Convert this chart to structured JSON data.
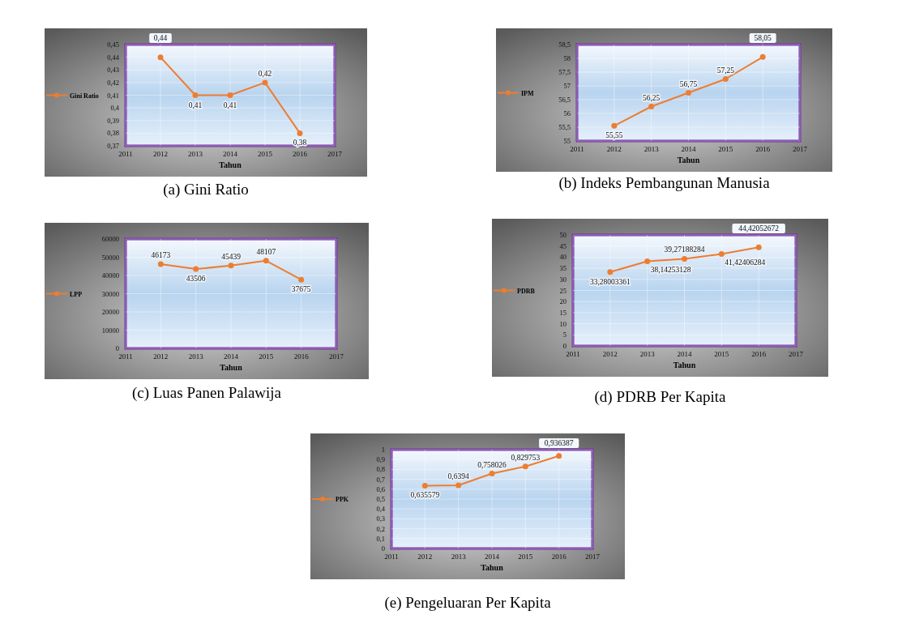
{
  "chart_data": [
    {
      "type": "line",
      "title": "(a)  Gini Ratio",
      "xlabel": "Tahun",
      "x": [
        2012,
        2013,
        2014,
        2015,
        2016
      ],
      "series": [
        {
          "name": "Gini Ratio",
          "color": "#ed7d31",
          "values": [
            0.44,
            0.41,
            0.41,
            0.42,
            0.38
          ],
          "value_labels": [
            "0,44",
            "0,41",
            "0,41",
            "0,42",
            "0,38"
          ]
        }
      ],
      "xlim": [
        2011,
        2017
      ],
      "xticks": [
        2011,
        2012,
        2013,
        2014,
        2015,
        2016,
        2017
      ],
      "ylim": [
        0.37,
        0.45
      ],
      "yticks": [
        {
          "value": 0.37,
          "label": "0,37"
        },
        {
          "value": 0.38,
          "label": "0,38"
        },
        {
          "value": 0.39,
          "label": "0,39"
        },
        {
          "value": 0.4,
          "label": "0,4"
        },
        {
          "value": 0.41,
          "label": "0,41"
        },
        {
          "value": 0.42,
          "label": "0,42"
        },
        {
          "value": 0.43,
          "label": "0,43"
        },
        {
          "value": 0.44,
          "label": "0,44"
        },
        {
          "value": 0.45,
          "label": "0,45"
        }
      ],
      "grid": true,
      "legend": "left",
      "marker": "circle"
    },
    {
      "type": "line",
      "title": "(b)  Indeks Pembangunan Manusia",
      "xlabel": "Tahun",
      "x": [
        2012,
        2013,
        2014,
        2015,
        2016
      ],
      "series": [
        {
          "name": "IPM",
          "color": "#ed7d31",
          "values": [
            55.55,
            56.25,
            56.75,
            57.25,
            58.05
          ],
          "value_labels": [
            "55,55",
            "56,25",
            "56,75",
            "57,25",
            "58,05"
          ]
        }
      ],
      "xlim": [
        2011,
        2017
      ],
      "xticks": [
        2011,
        2012,
        2013,
        2014,
        2015,
        2016,
        2017
      ],
      "ylim": [
        55,
        58.5
      ],
      "yticks": [
        55,
        {
          "value": 55.5,
          "label": "55,5"
        },
        56,
        {
          "value": 56.5,
          "label": "56,5"
        },
        57,
        {
          "value": 57.5,
          "label": "57,5"
        },
        58,
        {
          "value": 58.5,
          "label": "58,5"
        }
      ],
      "grid": true,
      "legend": "left",
      "marker": "circle"
    },
    {
      "type": "line",
      "title": "(c)  Luas Panen Palawija",
      "xlabel": "Tahun",
      "x": [
        2012,
        2013,
        2014,
        2015,
        2016
      ],
      "series": [
        {
          "name": "LPP",
          "color": "#ed7d31",
          "values": [
            46173,
            43506,
            45439,
            48107,
            37675
          ],
          "value_labels": [
            "46173",
            "43506",
            "45439",
            "48107",
            "37675"
          ]
        }
      ],
      "xlim": [
        2011,
        2017
      ],
      "xticks": [
        2011,
        2012,
        2013,
        2014,
        2015,
        2016,
        2017
      ],
      "ylim": [
        0,
        60000
      ],
      "yticks": [
        0,
        10000,
        20000,
        30000,
        40000,
        50000,
        60000
      ],
      "grid": true,
      "legend": "left",
      "marker": "circle"
    },
    {
      "type": "line",
      "title": "(d)  PDRB Per Kapita",
      "xlabel": "Tahun",
      "x": [
        2012,
        2013,
        2014,
        2015,
        2016
      ],
      "series": [
        {
          "name": "PDRB",
          "color": "#ed7d31",
          "values": [
            33.28003361,
            38.14253128,
            39.27188284,
            41.42406284,
            44.42052672
          ],
          "value_labels": [
            "33,28003361",
            "38,14253128",
            "39,27188284",
            "41,42406284",
            "44,42052672"
          ]
        }
      ],
      "xlim": [
        2011,
        2017
      ],
      "xticks": [
        2011,
        2012,
        2013,
        2014,
        2015,
        2016,
        2017
      ],
      "ylim": [
        0,
        50
      ],
      "yticks": [
        0,
        5,
        10,
        15,
        20,
        25,
        30,
        35,
        40,
        45,
        50
      ],
      "grid": true,
      "legend": "left",
      "marker": "circle"
    },
    {
      "type": "line",
      "title": "(e)  Pengeluaran Per Kapita",
      "xlabel": "Tahun",
      "x": [
        2012,
        2013,
        2014,
        2015,
        2016
      ],
      "series": [
        {
          "name": "PPK",
          "color": "#ed7d31",
          "values": [
            0.635579,
            0.6394,
            0.758026,
            0.829753,
            0.936387
          ],
          "value_labels": [
            "0,635579",
            "0,6394",
            "0,758026",
            "0,829753",
            "0,936387"
          ]
        }
      ],
      "xlim": [
        2011,
        2017
      ],
      "xticks": [
        2011,
        2012,
        2013,
        2014,
        2015,
        2016,
        2017
      ],
      "ylim": [
        0,
        1
      ],
      "yticks": [
        0,
        {
          "value": 0.1,
          "label": "0,1"
        },
        {
          "value": 0.2,
          "label": "0,2"
        },
        {
          "value": 0.3,
          "label": "0,3"
        },
        {
          "value": 0.4,
          "label": "0,4"
        },
        {
          "value": 0.5,
          "label": "0,5"
        },
        {
          "value": 0.6,
          "label": "0,6"
        },
        {
          "value": 0.7,
          "label": "0,7"
        },
        {
          "value": 0.8,
          "label": "0,8"
        },
        {
          "value": 0.9,
          "label": "0,9"
        },
        1
      ],
      "grid": true,
      "legend": "left",
      "marker": "circle"
    }
  ]
}
